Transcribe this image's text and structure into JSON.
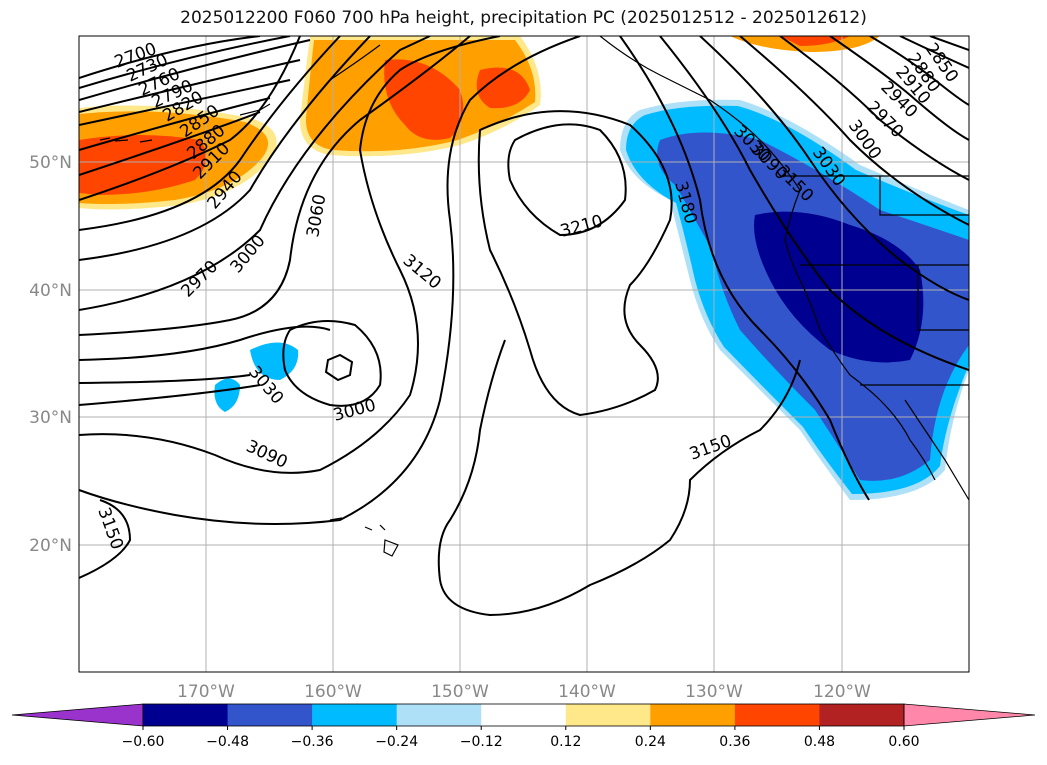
{
  "title": "2025012200 F060 700 hPa height, precipitation PC (2025012512 - 2025012612)",
  "map": {
    "lon_ticks": [
      "170°W",
      "160°W",
      "150°W",
      "140°W",
      "130°W",
      "120°W"
    ],
    "lat_ticks": [
      "50°N",
      "40°N",
      "30°N",
      "20°N"
    ],
    "gridlines": true,
    "contour_labels": [
      "2700",
      "2730",
      "2760",
      "2790",
      "2820",
      "2850",
      "2880",
      "2910",
      "2940",
      "2970",
      "3000",
      "3030",
      "3060",
      "3090",
      "3120",
      "3150",
      "3180",
      "3210",
      "3000",
      "3030",
      "3090",
      "3150",
      "3150",
      "3030",
      "3000",
      "2970",
      "2940",
      "2910",
      "2880",
      "2850"
    ]
  },
  "colorbar": {
    "ticks": [
      "−0.60",
      "−0.48",
      "−0.36",
      "−0.24",
      "−0.12",
      "0.12",
      "0.24",
      "0.36",
      "0.48",
      "0.60"
    ],
    "colors": [
      "#9933cc",
      "#000090",
      "#3355cc",
      "#00bbff",
      "#aee0f8",
      "#ffffff",
      "#ffe88a",
      "#ffa000",
      "#ff4500",
      "#b22222",
      "#ff88aa"
    ]
  }
}
